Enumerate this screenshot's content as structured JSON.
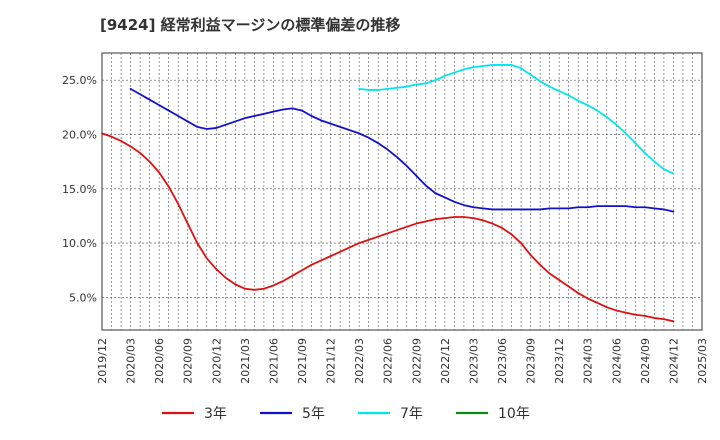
{
  "chart_data": {
    "type": "line",
    "title": "[9424]  経常利益マージンの標準偏差の推移",
    "xlabel": "",
    "ylabel": "",
    "ylim": [
      0.02,
      0.275
    ],
    "y_ticks": [
      0.05,
      0.1,
      0.15,
      0.2,
      0.25
    ],
    "y_tick_labels": [
      "5.0%",
      "10.0%",
      "15.0%",
      "20.0%",
      "25.0%"
    ],
    "x_range": [
      "2019-12",
      "2025-03"
    ],
    "x_tick_labels": [
      "2019/12",
      "2020/03",
      "2020/06",
      "2020/09",
      "2020/12",
      "2021/03",
      "2021/06",
      "2021/09",
      "2021/12",
      "2022/03",
      "2022/06",
      "2022/09",
      "2022/12",
      "2023/03",
      "2023/06",
      "2023/09",
      "2023/12",
      "2024/03",
      "2024/06",
      "2024/09",
      "2024/12",
      "2025/03"
    ],
    "grid": true,
    "legend_position": "bottom",
    "series": [
      {
        "name": "3年",
        "color": "#dd1111",
        "x": [
          "2019-12",
          "2020-01",
          "2020-02",
          "2020-03",
          "2020-04",
          "2020-05",
          "2020-06",
          "2020-07",
          "2020-08",
          "2020-09",
          "2020-10",
          "2020-11",
          "2020-12",
          "2021-01",
          "2021-02",
          "2021-03",
          "2021-04",
          "2021-05",
          "2021-06",
          "2021-07",
          "2021-08",
          "2021-09",
          "2021-10",
          "2021-11",
          "2021-12",
          "2022-01",
          "2022-02",
          "2022-03",
          "2022-04",
          "2022-05",
          "2022-06",
          "2022-07",
          "2022-08",
          "2022-09",
          "2022-10",
          "2022-11",
          "2022-12",
          "2023-01",
          "2023-02",
          "2023-03",
          "2023-04",
          "2023-05",
          "2023-06",
          "2023-07",
          "2023-08",
          "2023-09",
          "2023-10",
          "2023-11",
          "2023-12",
          "2024-01",
          "2024-02",
          "2024-03",
          "2024-04",
          "2024-05",
          "2024-06",
          "2024-07",
          "2024-08",
          "2024-09",
          "2024-10",
          "2024-11",
          "2024-12"
        ],
        "values": [
          0.201,
          0.198,
          0.194,
          0.189,
          0.183,
          0.175,
          0.165,
          0.152,
          0.136,
          0.118,
          0.1,
          0.086,
          0.076,
          0.068,
          0.062,
          0.058,
          0.057,
          0.058,
          0.061,
          0.065,
          0.07,
          0.075,
          0.08,
          0.084,
          0.088,
          0.092,
          0.096,
          0.1,
          0.103,
          0.106,
          0.109,
          0.112,
          0.115,
          0.118,
          0.12,
          0.122,
          0.123,
          0.124,
          0.124,
          0.123,
          0.121,
          0.118,
          0.114,
          0.108,
          0.1,
          0.089,
          0.08,
          0.072,
          0.066,
          0.06,
          0.054,
          0.049,
          0.045,
          0.041,
          0.038,
          0.036,
          0.034,
          0.033,
          0.031,
          0.03,
          0.028
        ]
      },
      {
        "name": "5年",
        "color": "#1111cc",
        "x": [
          "2020-03",
          "2020-04",
          "2020-05",
          "2020-06",
          "2020-07",
          "2020-08",
          "2020-09",
          "2020-10",
          "2020-11",
          "2020-12",
          "2021-01",
          "2021-02",
          "2021-03",
          "2021-04",
          "2021-05",
          "2021-06",
          "2021-07",
          "2021-08",
          "2021-09",
          "2021-10",
          "2021-11",
          "2021-12",
          "2022-01",
          "2022-02",
          "2022-03",
          "2022-04",
          "2022-05",
          "2022-06",
          "2022-07",
          "2022-08",
          "2022-09",
          "2022-10",
          "2022-11",
          "2022-12",
          "2023-01",
          "2023-02",
          "2023-03",
          "2023-04",
          "2023-05",
          "2023-06",
          "2023-07",
          "2023-08",
          "2023-09",
          "2023-10",
          "2023-11",
          "2023-12",
          "2024-01",
          "2024-02",
          "2024-03",
          "2024-04",
          "2024-05",
          "2024-06",
          "2024-07",
          "2024-08",
          "2024-09",
          "2024-10",
          "2024-11",
          "2024-12"
        ],
        "values": [
          0.242,
          0.237,
          0.232,
          0.227,
          0.222,
          0.217,
          0.212,
          0.207,
          0.205,
          0.206,
          0.209,
          0.212,
          0.215,
          0.217,
          0.219,
          0.221,
          0.223,
          0.224,
          0.222,
          0.217,
          0.213,
          0.21,
          0.207,
          0.204,
          0.201,
          0.197,
          0.192,
          0.186,
          0.179,
          0.171,
          0.162,
          0.153,
          0.146,
          0.142,
          0.138,
          0.135,
          0.133,
          0.132,
          0.131,
          0.131,
          0.131,
          0.131,
          0.131,
          0.131,
          0.132,
          0.132,
          0.132,
          0.133,
          0.133,
          0.134,
          0.134,
          0.134,
          0.134,
          0.133,
          0.133,
          0.132,
          0.131,
          0.129
        ]
      },
      {
        "name": "7年",
        "color": "#00e5ee",
        "x": [
          "2022-03",
          "2022-04",
          "2022-05",
          "2022-06",
          "2022-07",
          "2022-08",
          "2022-09",
          "2022-10",
          "2022-11",
          "2022-12",
          "2023-01",
          "2023-02",
          "2023-03",
          "2023-04",
          "2023-05",
          "2023-06",
          "2023-07",
          "2023-08",
          "2023-09",
          "2023-10",
          "2023-11",
          "2023-12",
          "2024-01",
          "2024-02",
          "2024-03",
          "2024-04",
          "2024-05",
          "2024-06",
          "2024-07",
          "2024-08",
          "2024-09",
          "2024-10",
          "2024-11",
          "2024-12"
        ],
        "values": [
          0.242,
          0.241,
          0.241,
          0.242,
          0.243,
          0.244,
          0.246,
          0.247,
          0.25,
          0.254,
          0.257,
          0.26,
          0.262,
          0.263,
          0.264,
          0.264,
          0.264,
          0.261,
          0.255,
          0.249,
          0.244,
          0.24,
          0.236,
          0.231,
          0.227,
          0.222,
          0.216,
          0.209,
          0.201,
          0.192,
          0.183,
          0.175,
          0.168,
          0.164
        ]
      },
      {
        "name": "10年",
        "color": "#118811",
        "x": [],
        "values": []
      }
    ]
  }
}
